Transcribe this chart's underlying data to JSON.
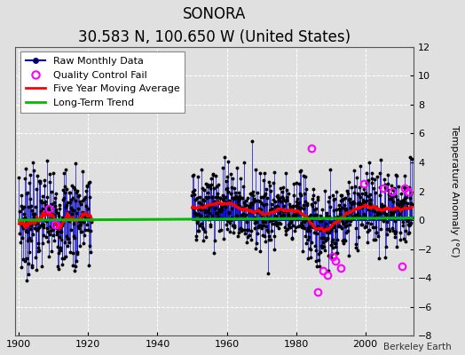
{
  "title": "SONORA",
  "subtitle": "30.583 N, 100.650 W (United States)",
  "ylabel": "Temperature Anomaly (°C)",
  "credit": "Berkeley Earth",
  "ylim": [
    -8,
    12
  ],
  "yticks": [
    -8,
    -6,
    -4,
    -2,
    0,
    2,
    4,
    6,
    8,
    10,
    12
  ],
  "xlim": [
    1899,
    2014
  ],
  "xticks": [
    1900,
    1920,
    1940,
    1960,
    1980,
    2000
  ],
  "background_color": "#e0e0e0",
  "plot_bg_color": "#e0e0e0",
  "grid_color": "#ffffff",
  "raw_color": "#0000cc",
  "dot_color": "#000000",
  "moving_avg_color": "#ff0000",
  "trend_color": "#00bb00",
  "qc_fail_color": "#ff00ff",
  "segment1_start": 1900.0,
  "segment1_end": 1921.0,
  "segment2_start": 1950.0,
  "segment2_end": 2013.5,
  "seed1": 7,
  "seed2": 42,
  "moving_avg_window": 60,
  "legend_fontsize": 8,
  "axis_fontsize": 8,
  "title_fontsize": 12
}
